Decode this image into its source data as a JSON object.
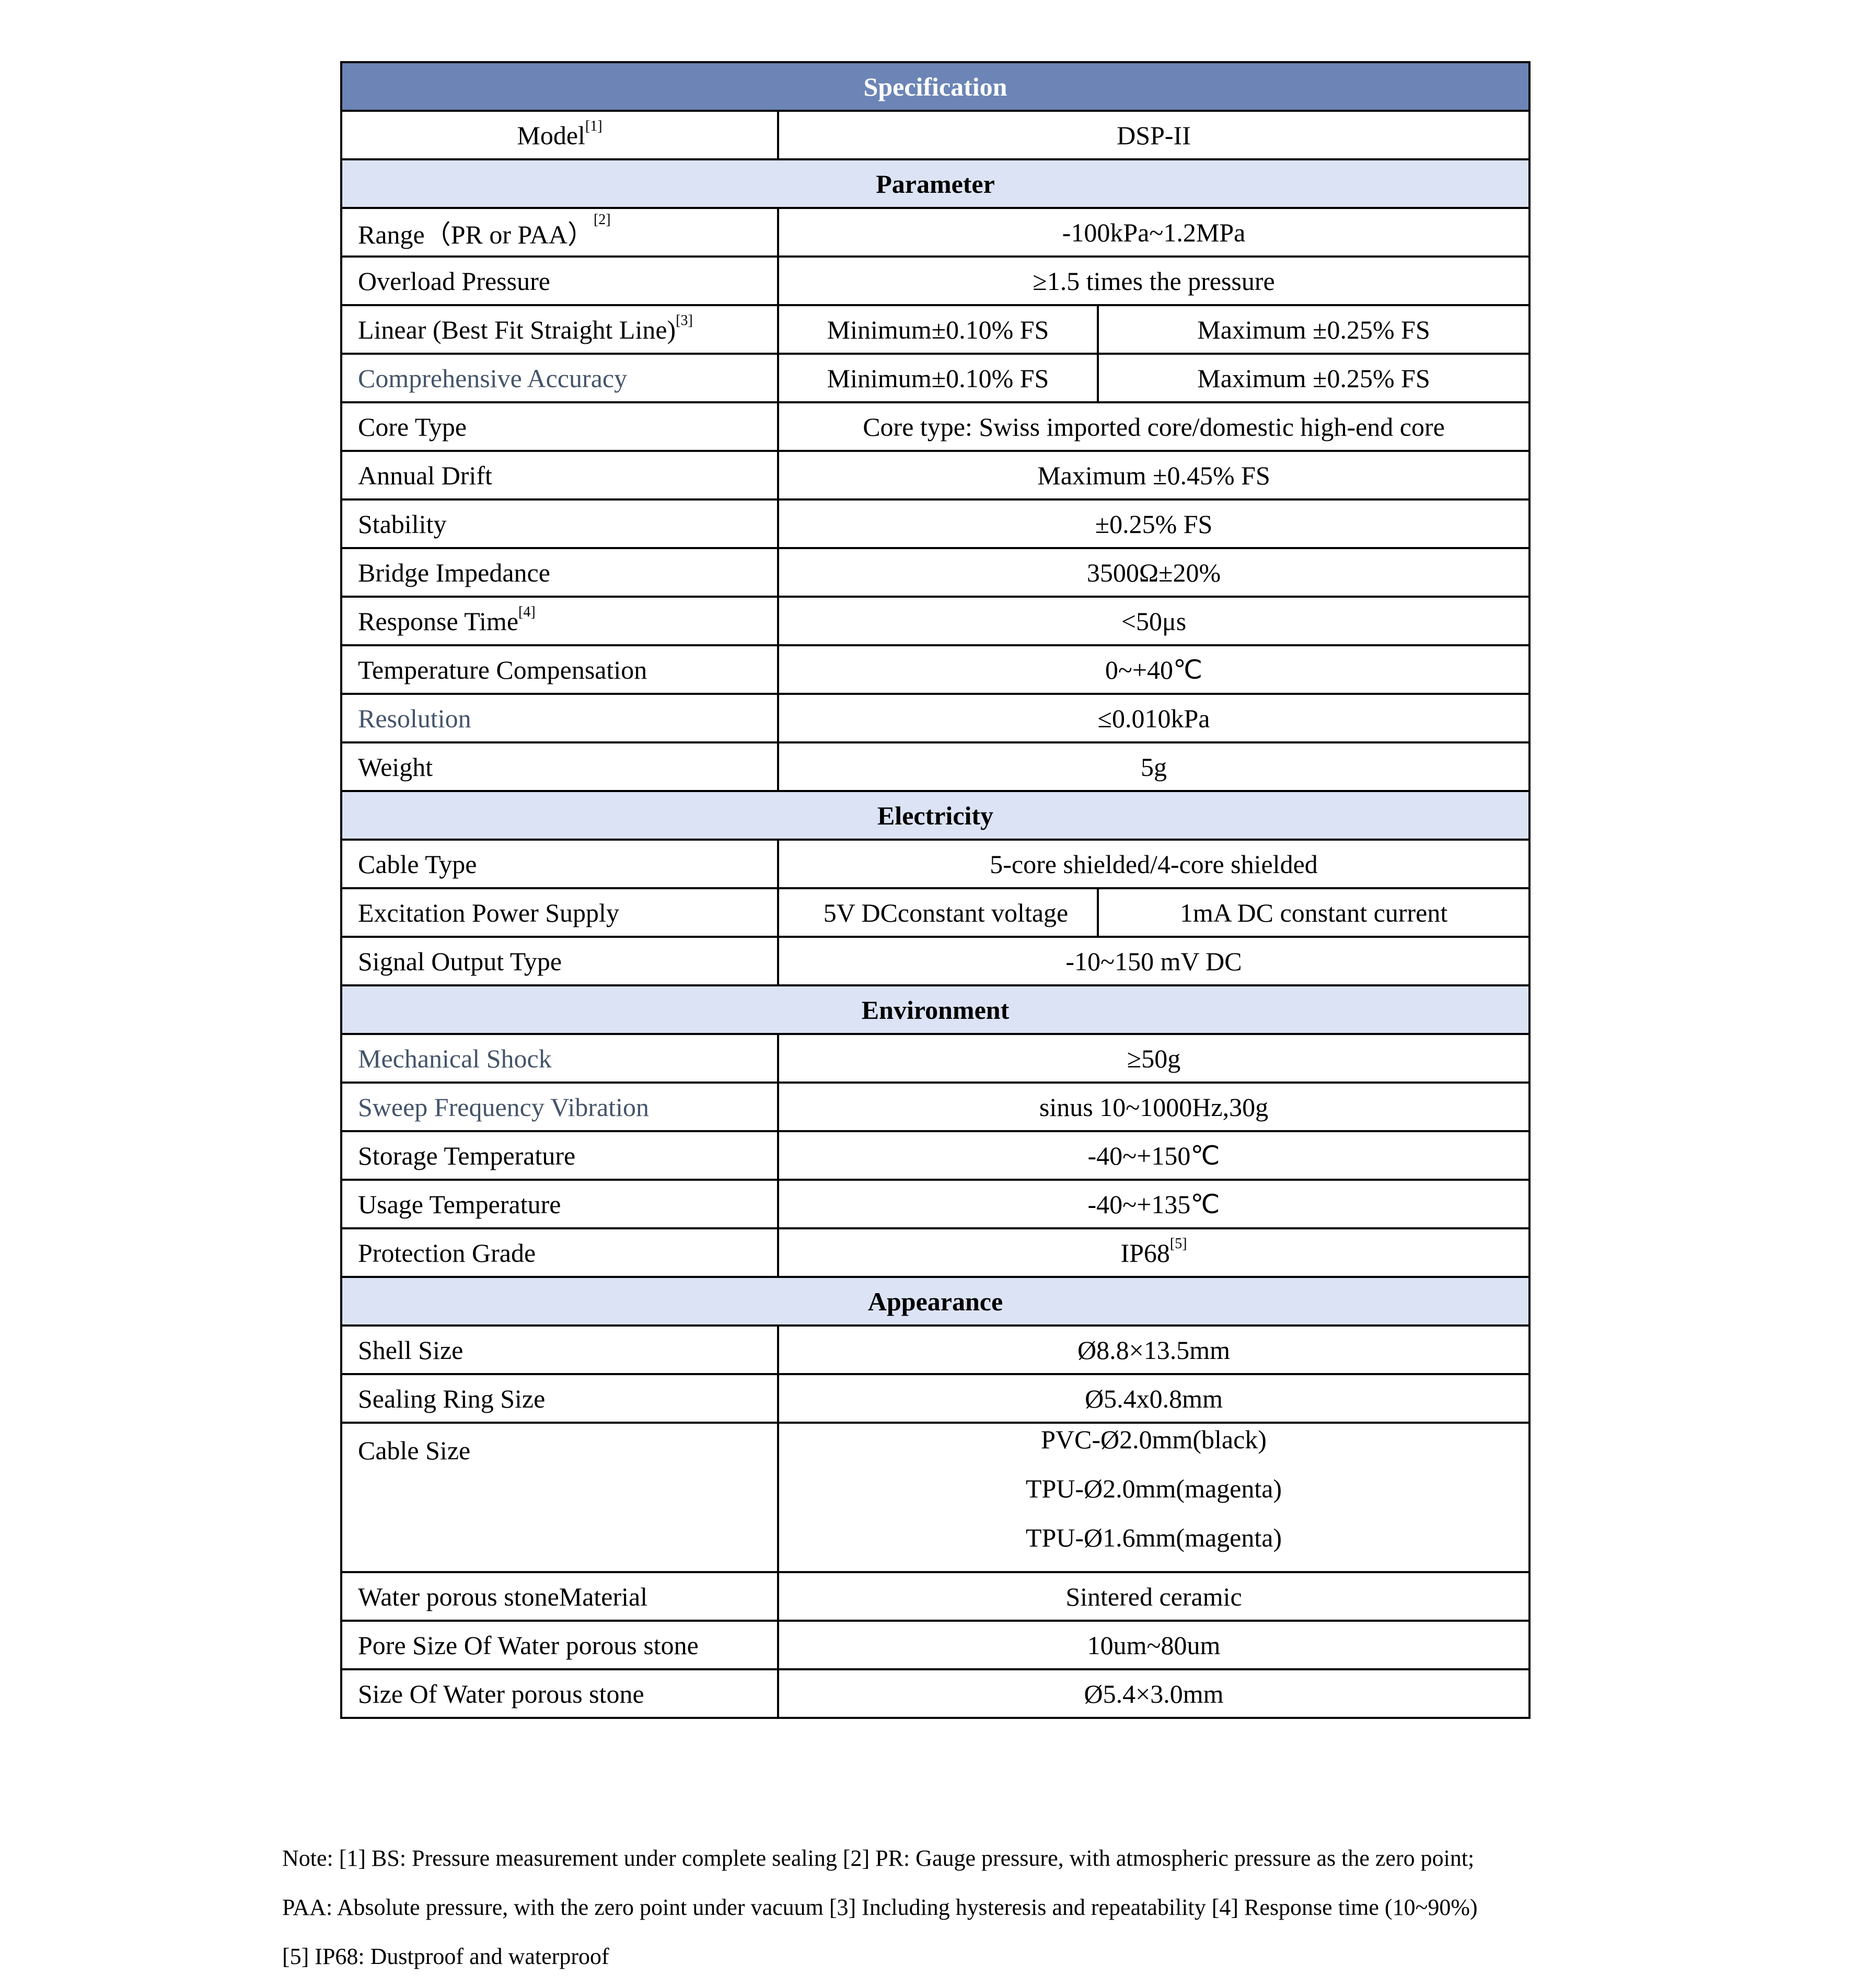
{
  "title": "Specification",
  "model": {
    "label": "Model",
    "sup": "[1]",
    "value": "DSP-II"
  },
  "sections": [
    {
      "name": "Parameter",
      "rows": [
        {
          "label": "Range（PR or PAA）",
          "sup": "[2]",
          "values": [
            "-100kPa~1.2MPa"
          ]
        },
        {
          "label": "Overload Pressure",
          "values": [
            "≥1.5 times the pressure"
          ]
        },
        {
          "label": "Linear (Best Fit Straight Line)",
          "sup": "[3]",
          "values": [
            "Minimum±0.10% FS",
            "Maximum ±0.25% FS"
          ]
        },
        {
          "label": "Comprehensive Accuracy",
          "muted": true,
          "values": [
            "Minimum±0.10% FS",
            "Maximum ±0.25% FS"
          ]
        },
        {
          "label": "Core Type",
          "values": [
            "Core type: Swiss imported core/domestic high-end core"
          ]
        },
        {
          "label": "Annual Drift",
          "values": [
            "Maximum ±0.45% FS"
          ]
        },
        {
          "label": "Stability",
          "values": [
            "±0.25% FS"
          ]
        },
        {
          "label": "Bridge Impedance",
          "values": [
            "3500Ω±20%"
          ]
        },
        {
          "label": "Response Time",
          "sup": "[4]",
          "values": [
            "<50μs"
          ]
        },
        {
          "label": "Temperature Compensation",
          "values": [
            "0~+40℃"
          ]
        },
        {
          "label": "Resolution",
          "muted": true,
          "values": [
            "≤0.010kPa"
          ]
        },
        {
          "label": "Weight",
          "values": [
            "5g"
          ]
        }
      ]
    },
    {
      "name": "Electricity",
      "rows": [
        {
          "label": "Cable Type",
          "values": [
            "5-core shielded/4-core shielded"
          ]
        },
        {
          "label": "Excitation Power Supply",
          "values": [
            "5V DCconstant voltage",
            "1mA DC constant current"
          ]
        },
        {
          "label": "Signal Output Type",
          "values": [
            "-10~150 mV DC"
          ]
        }
      ]
    },
    {
      "name": "Environment",
      "rows": [
        {
          "label": "Mechanical Shock",
          "muted": true,
          "values": [
            "≥50g"
          ]
        },
        {
          "label": "Sweep Frequency Vibration",
          "muted": true,
          "values": [
            "sinus 10~1000Hz,30g"
          ]
        },
        {
          "label": "Storage Temperature",
          "values": [
            "-40~+150℃"
          ]
        },
        {
          "label": "Usage Temperature",
          "values": [
            "-40~+135℃"
          ]
        },
        {
          "label": "Protection Grade",
          "values": [
            "IP68"
          ],
          "value_sup": "[5]"
        }
      ]
    },
    {
      "name": "Appearance",
      "rows": [
        {
          "label": "Shell Size",
          "values": [
            "Ø8.8×13.5mm"
          ]
        },
        {
          "label": "Sealing Ring Size",
          "values": [
            "Ø5.4x0.8mm"
          ]
        },
        {
          "label": "Cable Size",
          "lines": [
            "PVC-Ø2.0mm(black)",
            "TPU-Ø2.0mm(magenta)",
            "TPU-Ø1.6mm(magenta)"
          ]
        },
        {
          "label": "Water porous stoneMaterial",
          "values": [
            "Sintered ceramic"
          ]
        },
        {
          "label": "Pore Size Of Water porous stone",
          "values": [
            "10um~80um"
          ]
        },
        {
          "label": "Size Of Water porous stone",
          "values": [
            "Ø5.4×3.0mm"
          ]
        }
      ]
    }
  ],
  "notes": [
    "Note: [1] BS: Pressure measurement under complete sealing [2] PR: Gauge pressure, with atmospheric pressure as the zero point;",
    "PAA: Absolute pressure, with the zero point under vacuum [3] Including hysteresis and repeatability [4] Response time (10~90%)",
    "[5] IP68: Dustproof and waterproof"
  ],
  "colors": {
    "header_bg": "#6c85b6",
    "section_bg": "#dce3f4",
    "muted_text": "#44546a"
  }
}
